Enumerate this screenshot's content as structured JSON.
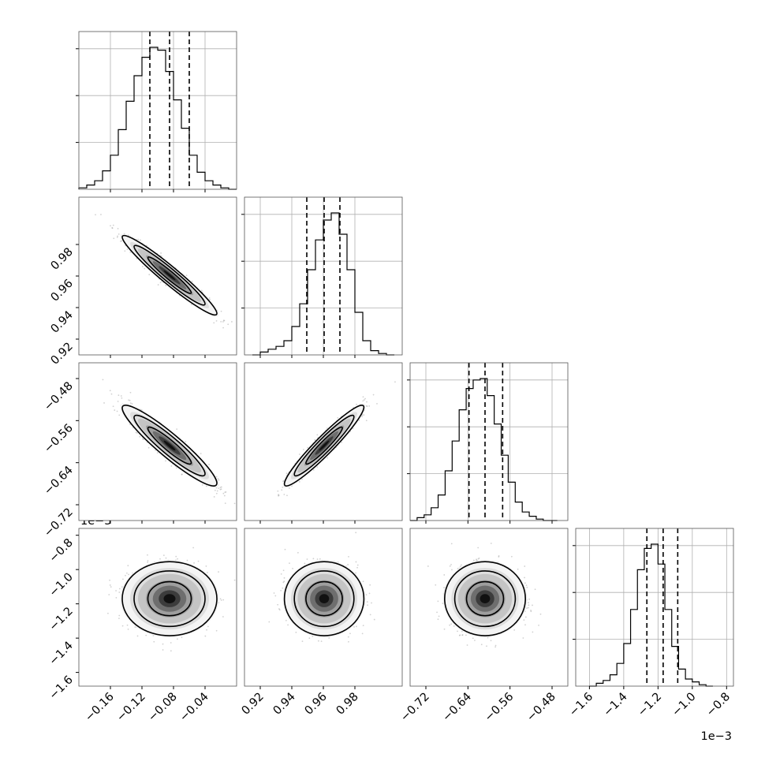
{
  "chart_data": {
    "type": "corner",
    "title": "",
    "variables": [
      {
        "range": [
          -0.2,
          0.0
        ],
        "ticks": [
          -0.16,
          -0.12,
          -0.08,
          -0.04
        ],
        "tick_labels": [
          "−0.16",
          "−0.12",
          "−0.08",
          "−0.04"
        ],
        "quantiles": [
          -0.11,
          -0.085,
          -0.06
        ],
        "hist": {
          "edges_start": -0.2,
          "bin_width": 0.01,
          "counts": [
            0.01,
            0.03,
            0.06,
            0.13,
            0.24,
            0.42,
            0.62,
            0.8,
            0.93,
            1.0,
            0.98,
            0.83,
            0.63,
            0.43,
            0.24,
            0.12,
            0.06,
            0.03,
            0.01,
            0.0
          ]
        }
      },
      {
        "range": [
          0.91,
          1.01
        ],
        "ticks": [
          0.92,
          0.94,
          0.96,
          0.98
        ],
        "tick_labels": [
          "0.92",
          "0.94",
          "0.96",
          "0.98"
        ],
        "quantiles": [
          0.9495,
          0.9605,
          0.9705
        ],
        "hist": {
          "edges_start": 0.915,
          "bin_width": 0.005,
          "counts": [
            0.0,
            0.02,
            0.04,
            0.06,
            0.1,
            0.2,
            0.36,
            0.6,
            0.81,
            0.95,
            1.0,
            0.85,
            0.6,
            0.3,
            0.1,
            0.03,
            0.01,
            0.0
          ]
        }
      },
      {
        "range": [
          -0.75,
          -0.45
        ],
        "ticks": [
          -0.72,
          -0.64,
          -0.56,
          -0.48
        ],
        "tick_labels": [
          "−0.72",
          "−0.64",
          "−0.56",
          "−0.48"
        ],
        "quantiles": [
          -0.638,
          -0.6075,
          -0.574
        ],
        "hist": {
          "edges_start": -0.75,
          "bin_width": 0.01333,
          "counts": [
            0.0,
            0.02,
            0.04,
            0.09,
            0.18,
            0.35,
            0.56,
            0.78,
            0.93,
            0.99,
            1.0,
            0.88,
            0.68,
            0.46,
            0.27,
            0.13,
            0.06,
            0.03,
            0.01,
            0.0,
            0.0
          ]
        }
      },
      {
        "range": [
          -1.68,
          -0.76
        ],
        "ticks": [
          -1.6,
          -1.4,
          -1.2,
          -1.0,
          -0.8
        ],
        "tick_labels": [
          "−1.6",
          "−1.4",
          "−1.2",
          "−1.0",
          "−0.8"
        ],
        "offset_label": "1e−3",
        "quantiles": [
          -1.265,
          -1.17,
          -1.085
        ],
        "hist": {
          "edges_start": -1.6,
          "bin_width": 0.04,
          "counts": [
            0.0,
            0.02,
            0.04,
            0.08,
            0.16,
            0.3,
            0.54,
            0.82,
            0.97,
            1.0,
            0.86,
            0.54,
            0.28,
            0.12,
            0.05,
            0.03,
            0.01,
            0.0
          ]
        }
      }
    ],
    "pairs": [
      {
        "row": 1,
        "col": 0,
        "mean": [
          -0.085,
          0.9605
        ],
        "sd": [
          0.025,
          0.0105
        ],
        "rho": -0.96
      },
      {
        "row": 2,
        "col": 0,
        "mean": [
          -0.085,
          -0.6075
        ],
        "sd": [
          0.025,
          0.032
        ],
        "rho": -0.93
      },
      {
        "row": 2,
        "col": 1,
        "mean": [
          0.9605,
          -0.6075
        ],
        "sd": [
          0.0105,
          0.032
        ],
        "rho": 0.95
      },
      {
        "row": 3,
        "col": 0,
        "mean": [
          -0.085,
          -1.17
        ],
        "sd": [
          0.025,
          0.09
        ],
        "rho": 0.0
      },
      {
        "row": 3,
        "col": 1,
        "mean": [
          0.9605,
          -1.17
        ],
        "sd": [
          0.0105,
          0.09
        ],
        "rho": 0.0
      },
      {
        "row": 3,
        "col": 2,
        "mean": [
          -0.6075,
          -1.17
        ],
        "sd": [
          0.032,
          0.09
        ],
        "rho": 0.0
      }
    ],
    "grid": true,
    "colors": {
      "line": "#000000",
      "points": "#9a9a9a",
      "grid": "#b0b0b0",
      "frame": "#555555"
    }
  }
}
